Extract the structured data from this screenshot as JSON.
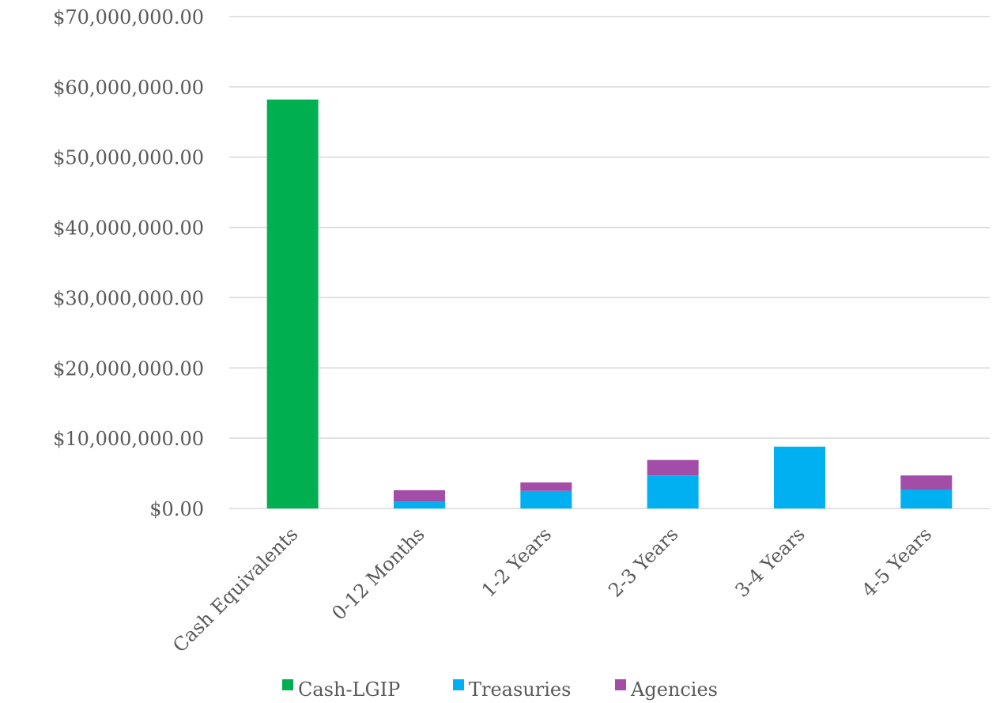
{
  "chart_data": {
    "type": "bar",
    "stacked": true,
    "categories": [
      "Cash Equivalents",
      "0-12 Months",
      "1-2 Years",
      "2-3 Years",
      "3-4 Years",
      "4-5 Years"
    ],
    "series": [
      {
        "name": "Cash-LGIP",
        "color": "#00b050",
        "values": [
          58200000,
          0,
          0,
          0,
          0,
          0
        ]
      },
      {
        "name": "Treasuries",
        "color": "#00b0f0",
        "values": [
          0,
          1000000,
          2500000,
          4700000,
          8800000,
          2700000
        ]
      },
      {
        "name": "Agencies",
        "color": "#a24ea8",
        "values": [
          0,
          1600000,
          1200000,
          2200000,
          0,
          2000000
        ]
      }
    ],
    "ylim": [
      0,
      70000000
    ],
    "yticks": [
      0,
      10000000,
      20000000,
      30000000,
      40000000,
      50000000,
      60000000,
      70000000
    ],
    "ytick_labels": [
      "$0.00",
      "$10,000,000.00",
      "$20,000,000.00",
      "$30,000,000.00",
      "$40,000,000.00",
      "$50,000,000.00",
      "$60,000,000.00",
      "$70,000,000.00"
    ],
    "grid": true,
    "legend_position": "bottom"
  }
}
